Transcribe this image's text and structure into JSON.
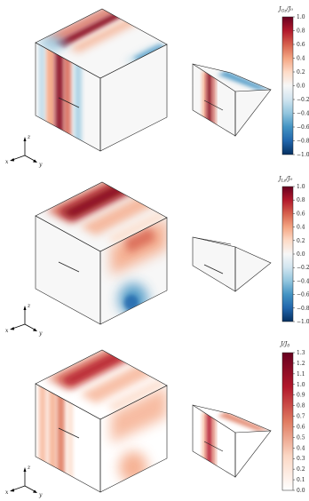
{
  "panels": [
    {
      "colorbar": {
        "label": "J_{G_z}/J_0",
        "label_main": "J",
        "label_sub": "Gz",
        "label_tail": "/J₀",
        "type": "diverging",
        "ticks": [
          "1.0",
          "0.8",
          "0.6",
          "0.4",
          "0.2",
          "0.0",
          "−0.2",
          "−0.4",
          "−0.6",
          "−0.8",
          "−1.0"
        ]
      },
      "axes": {
        "z": "z",
        "x": "x",
        "y": "y"
      }
    },
    {
      "colorbar": {
        "label": "J_{L_z}/J_0",
        "label_main": "J",
        "label_sub": "Lz",
        "label_tail": "/J₀",
        "type": "diverging",
        "ticks": [
          "1.0",
          "0.8",
          "0.6",
          "0.4",
          "0.2",
          "0.0",
          "−0.2",
          "−0.4",
          "−0.6",
          "−0.8",
          "−1.0"
        ]
      },
      "axes": {
        "z": "z",
        "x": "x",
        "y": "y"
      }
    },
    {
      "colorbar": {
        "label": "J/J_0",
        "label_main": "J/J",
        "label_sub": "0",
        "label_tail": "",
        "type": "sequential",
        "ticks": [
          "1.3",
          "1.2",
          "1.1",
          "1.0",
          "0.9",
          "0.8",
          "0.7",
          "0.6",
          "0.5",
          "0.4",
          "0.3",
          "0.2",
          "0.1",
          "0.0"
        ]
      },
      "axes": {
        "z": "z",
        "x": "x",
        "y": "y"
      }
    }
  ],
  "colors": {
    "dark_red": "#8b0d24",
    "red": "#c8303a",
    "light_red": "#f2b69b",
    "white": "#f7f7f7",
    "light_blue": "#a9cfe5",
    "blue": "#3a7fba",
    "dark_blue": "#0d3a6e"
  }
}
